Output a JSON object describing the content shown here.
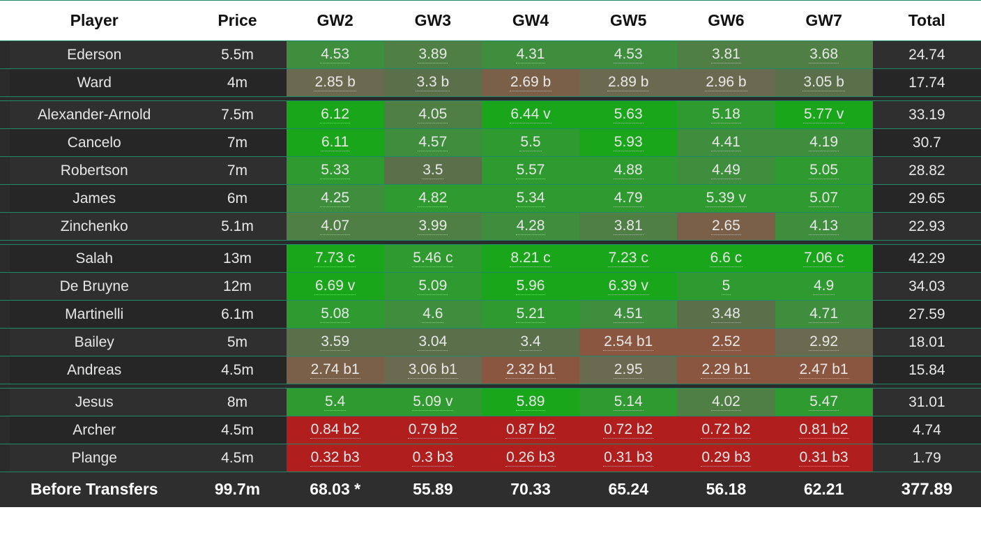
{
  "colors": {
    "border": "#1e8a6a",
    "header_bg": "#ffffff",
    "header_fg": "#111111",
    "row_bg_dark": "#2f2f2f",
    "row_bg_darker": "#262626",
    "row_fg": "#e8e8e8",
    "footer_bg": "#2e2e2e",
    "footer_fg": "#ffffff",
    "cell_palette": {
      "g5": "#1aa61a",
      "g4": "#2f9a2f",
      "g3": "#3e8e3e",
      "g2": "#4f7f44",
      "g1": "#5a6f4a",
      "n": "#6a6a50",
      "o1": "#7a6048",
      "o2": "#8a5640",
      "r1": "#9a2a2a",
      "r2": "#b01e1e"
    }
  },
  "columns": [
    "Player",
    "Price",
    "GW2",
    "GW3",
    "GW4",
    "GW5",
    "GW6",
    "GW7",
    "Total"
  ],
  "groups": [
    {
      "rows": [
        {
          "player": "Ederson",
          "price": "5.5m",
          "total": "24.74",
          "bg": "#2f2f2f",
          "cells": [
            {
              "v": "4.53",
              "c": "g3"
            },
            {
              "v": "3.89",
              "c": "g2"
            },
            {
              "v": "4.31",
              "c": "g3"
            },
            {
              "v": "4.53",
              "c": "g3"
            },
            {
              "v": "3.81",
              "c": "g2"
            },
            {
              "v": "3.68",
              "c": "g2"
            }
          ]
        },
        {
          "player": "Ward",
          "price": "4m",
          "total": "17.74",
          "bg": "#262626",
          "cells": [
            {
              "v": "2.85 b",
              "c": "n"
            },
            {
              "v": "3.3 b",
              "c": "g1"
            },
            {
              "v": "2.69 b",
              "c": "o1"
            },
            {
              "v": "2.89 b",
              "c": "n"
            },
            {
              "v": "2.96 b",
              "c": "n"
            },
            {
              "v": "3.05 b",
              "c": "g1"
            }
          ]
        }
      ]
    },
    {
      "rows": [
        {
          "player": "Alexander-Arnold",
          "price": "7.5m",
          "total": "33.19",
          "bg": "#2f2f2f",
          "cells": [
            {
              "v": "6.12",
              "c": "g5"
            },
            {
              "v": "4.05",
              "c": "g2"
            },
            {
              "v": "6.44 v",
              "c": "g5"
            },
            {
              "v": "5.63",
              "c": "g5"
            },
            {
              "v": "5.18",
              "c": "g4"
            },
            {
              "v": "5.77 v",
              "c": "g5"
            }
          ]
        },
        {
          "player": "Cancelo",
          "price": "7m",
          "total": "30.7",
          "bg": "#262626",
          "cells": [
            {
              "v": "6.11",
              "c": "g5"
            },
            {
              "v": "4.57",
              "c": "g3"
            },
            {
              "v": "5.5",
              "c": "g4"
            },
            {
              "v": "5.93",
              "c": "g5"
            },
            {
              "v": "4.41",
              "c": "g3"
            },
            {
              "v": "4.19",
              "c": "g3"
            }
          ]
        },
        {
          "player": "Robertson",
          "price": "7m",
          "total": "28.82",
          "bg": "#2f2f2f",
          "cells": [
            {
              "v": "5.33",
              "c": "g4"
            },
            {
              "v": "3.5",
              "c": "g1"
            },
            {
              "v": "5.57",
              "c": "g4"
            },
            {
              "v": "4.88",
              "c": "g4"
            },
            {
              "v": "4.49",
              "c": "g3"
            },
            {
              "v": "5.05",
              "c": "g4"
            }
          ]
        },
        {
          "player": "James",
          "price": "6m",
          "total": "29.65",
          "bg": "#262626",
          "cells": [
            {
              "v": "4.25",
              "c": "g3"
            },
            {
              "v": "4.82",
              "c": "g4"
            },
            {
              "v": "5.34",
              "c": "g4"
            },
            {
              "v": "4.79",
              "c": "g4"
            },
            {
              "v": "5.39 v",
              "c": "g4"
            },
            {
              "v": "5.07",
              "c": "g4"
            }
          ]
        },
        {
          "player": "Zinchenko",
          "price": "5.1m",
          "total": "22.93",
          "bg": "#2f2f2f",
          "cells": [
            {
              "v": "4.07",
              "c": "g2"
            },
            {
              "v": "3.99",
              "c": "g2"
            },
            {
              "v": "4.28",
              "c": "g3"
            },
            {
              "v": "3.81",
              "c": "g2"
            },
            {
              "v": "2.65",
              "c": "o1"
            },
            {
              "v": "4.13",
              "c": "g3"
            }
          ]
        }
      ]
    },
    {
      "rows": [
        {
          "player": "Salah",
          "price": "13m",
          "total": "42.29",
          "bg": "#262626",
          "cells": [
            {
              "v": "7.73 c",
              "c": "g5"
            },
            {
              "v": "5.46 c",
              "c": "g4"
            },
            {
              "v": "8.21 c",
              "c": "g5"
            },
            {
              "v": "7.23 c",
              "c": "g5"
            },
            {
              "v": "6.6 c",
              "c": "g5"
            },
            {
              "v": "7.06 c",
              "c": "g5"
            }
          ]
        },
        {
          "player": "De Bruyne",
          "price": "12m",
          "total": "34.03",
          "bg": "#2f2f2f",
          "cells": [
            {
              "v": "6.69 v",
              "c": "g5"
            },
            {
              "v": "5.09",
              "c": "g4"
            },
            {
              "v": "5.96",
              "c": "g5"
            },
            {
              "v": "6.39 v",
              "c": "g5"
            },
            {
              "v": "5",
              "c": "g4"
            },
            {
              "v": "4.9",
              "c": "g4"
            }
          ]
        },
        {
          "player": "Martinelli",
          "price": "6.1m",
          "total": "27.59",
          "bg": "#262626",
          "cells": [
            {
              "v": "5.08",
              "c": "g4"
            },
            {
              "v": "4.6",
              "c": "g3"
            },
            {
              "v": "5.21",
              "c": "g4"
            },
            {
              "v": "4.51",
              "c": "g3"
            },
            {
              "v": "3.48",
              "c": "g1"
            },
            {
              "v": "4.71",
              "c": "g3"
            }
          ]
        },
        {
          "player": "Bailey",
          "price": "5m",
          "total": "18.01",
          "bg": "#2f2f2f",
          "cells": [
            {
              "v": "3.59",
              "c": "g1"
            },
            {
              "v": "3.04",
              "c": "g1"
            },
            {
              "v": "3.4",
              "c": "g1"
            },
            {
              "v": "2.54 b1",
              "c": "o2"
            },
            {
              "v": "2.52",
              "c": "o2"
            },
            {
              "v": "2.92",
              "c": "n"
            }
          ]
        },
        {
          "player": "Andreas",
          "price": "4.5m",
          "total": "15.84",
          "bg": "#262626",
          "cells": [
            {
              "v": "2.74 b1",
              "c": "o1"
            },
            {
              "v": "3.06 b1",
              "c": "n"
            },
            {
              "v": "2.32 b1",
              "c": "o2"
            },
            {
              "v": "2.95",
              "c": "n"
            },
            {
              "v": "2.29 b1",
              "c": "o2"
            },
            {
              "v": "2.47 b1",
              "c": "o2"
            }
          ]
        }
      ]
    },
    {
      "rows": [
        {
          "player": "Jesus",
          "price": "8m",
          "total": "31.01",
          "bg": "#2f2f2f",
          "cells": [
            {
              "v": "5.4",
              "c": "g4"
            },
            {
              "v": "5.09 v",
              "c": "g4"
            },
            {
              "v": "5.89",
              "c": "g5"
            },
            {
              "v": "5.14",
              "c": "g4"
            },
            {
              "v": "4.02",
              "c": "g2"
            },
            {
              "v": "5.47",
              "c": "g4"
            }
          ]
        },
        {
          "player": "Archer",
          "price": "4.5m",
          "total": "4.74",
          "bg": "#262626",
          "cells": [
            {
              "v": "0.84 b2",
              "c": "r2"
            },
            {
              "v": "0.79 b2",
              "c": "r2"
            },
            {
              "v": "0.87 b2",
              "c": "r2"
            },
            {
              "v": "0.72 b2",
              "c": "r2"
            },
            {
              "v": "0.72 b2",
              "c": "r2"
            },
            {
              "v": "0.81 b2",
              "c": "r2"
            }
          ]
        },
        {
          "player": "Plange",
          "price": "4.5m",
          "total": "1.79",
          "bg": "#2f2f2f",
          "cells": [
            {
              "v": "0.32 b3",
              "c": "r2"
            },
            {
              "v": "0.3 b3",
              "c": "r2"
            },
            {
              "v": "0.26 b3",
              "c": "r2"
            },
            {
              "v": "0.31 b3",
              "c": "r2"
            },
            {
              "v": "0.29 b3",
              "c": "r2"
            },
            {
              "v": "0.31 b3",
              "c": "r2"
            }
          ]
        }
      ]
    }
  ],
  "footer": {
    "label": "Before Transfers",
    "price": "99.7m",
    "gw": [
      "68.03 *",
      "55.89",
      "70.33",
      "65.24",
      "56.18",
      "62.21"
    ],
    "total": "377.89"
  }
}
